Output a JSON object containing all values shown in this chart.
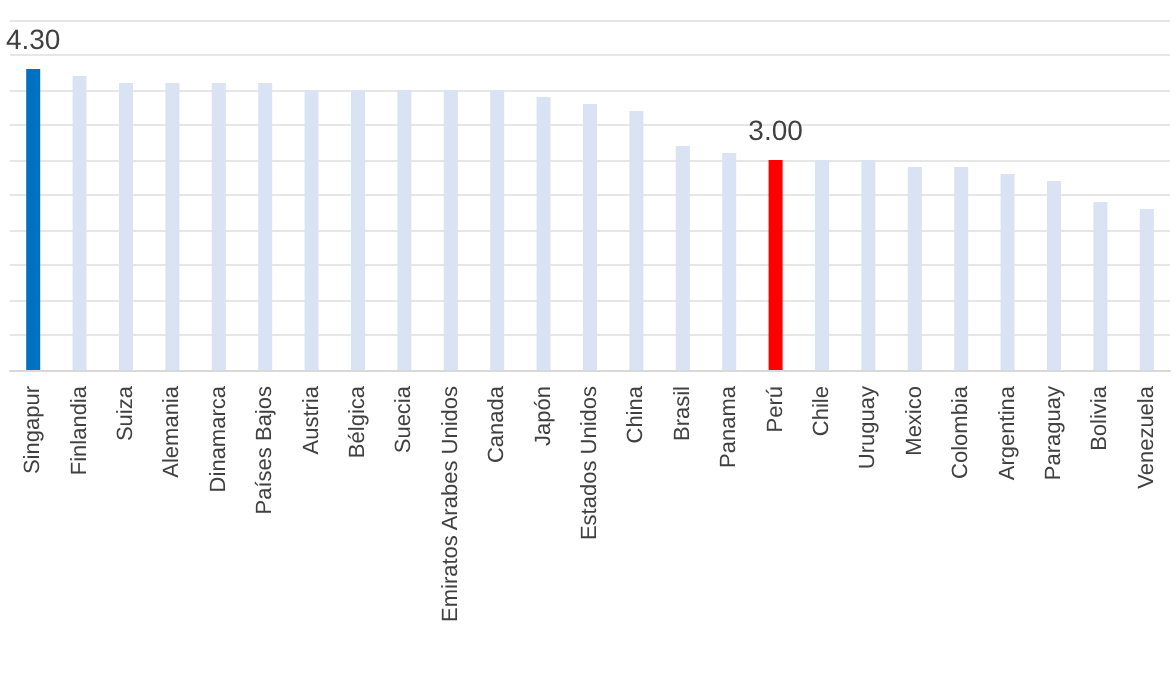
{
  "chart_data": {
    "type": "bar",
    "categories": [
      "Singapur",
      "Finlandia",
      "Suiza",
      "Alemania",
      "Dinamarca",
      "Países Bajos",
      "Austria",
      "Bélgica",
      "Suecia",
      "Emiratos Arabes Unidos",
      "Canada",
      "Japón",
      "Estados Unidos",
      "China",
      "Brasil",
      "Panama",
      "Perú",
      "Chile",
      "Uruguay",
      "Mexico",
      "Colombia",
      "Argentina",
      "Paraguay",
      "Bolivia",
      "Venezuela"
    ],
    "values": [
      4.3,
      4.2,
      4.1,
      4.1,
      4.1,
      4.1,
      4.0,
      4.0,
      4.0,
      4.0,
      4.0,
      3.9,
      3.8,
      3.7,
      3.2,
      3.1,
      3.0,
      3.0,
      3.0,
      2.9,
      2.9,
      2.8,
      2.7,
      2.4,
      2.3
    ],
    "colors": [
      "#0070c0",
      "#dae3f3",
      "#dae3f3",
      "#dae3f3",
      "#dae3f3",
      "#dae3f3",
      "#dae3f3",
      "#dae3f3",
      "#dae3f3",
      "#dae3f3",
      "#dae3f3",
      "#dae3f3",
      "#dae3f3",
      "#dae3f3",
      "#dae3f3",
      "#dae3f3",
      "#ff0000",
      "#dae3f3",
      "#dae3f3",
      "#dae3f3",
      "#dae3f3",
      "#dae3f3",
      "#dae3f3",
      "#dae3f3",
      "#dae3f3"
    ],
    "value_labels": [
      "4.30",
      null,
      null,
      null,
      null,
      null,
      null,
      null,
      null,
      null,
      null,
      null,
      null,
      null,
      null,
      null,
      "3.00",
      null,
      null,
      null,
      null,
      null,
      null,
      null,
      null
    ],
    "ylim": [
      0,
      5
    ],
    "yticks": [
      {
        "value": 0,
        "label": null
      },
      {
        "value": 0.5,
        "label": null
      },
      {
        "value": 1,
        "label": null
      },
      {
        "value": 1.5,
        "label": null
      },
      {
        "value": 2,
        "label": null
      },
      {
        "value": 2.5,
        "label": null
      },
      {
        "value": 3,
        "label": null
      },
      {
        "value": 3.5,
        "label": null
      },
      {
        "value": 4,
        "label": null
      },
      {
        "value": 4.5,
        "label": null
      },
      {
        "value": 5,
        "label": null
      }
    ],
    "grid": "y",
    "tick_labels": "x"
  }
}
